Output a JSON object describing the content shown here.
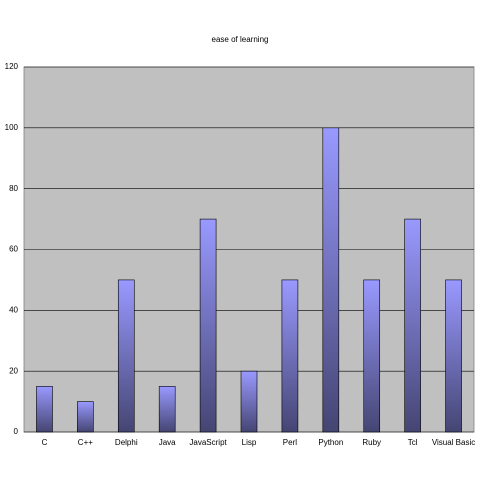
{
  "chart_data": {
    "type": "bar",
    "title": "ease of learning",
    "categories": [
      "C",
      "C++",
      "Delphi",
      "Java",
      "JavaScript",
      "Lisp",
      "Perl",
      "Python",
      "Ruby",
      "Tcl",
      "Visual Basic"
    ],
    "values": [
      15,
      10,
      50,
      15,
      70,
      20,
      50,
      100,
      50,
      70,
      50
    ],
    "color": "#9999ff",
    "ylim": [
      0,
      120
    ],
    "yticks": [
      0,
      20,
      40,
      60,
      80,
      100,
      120
    ],
    "grid": true
  }
}
